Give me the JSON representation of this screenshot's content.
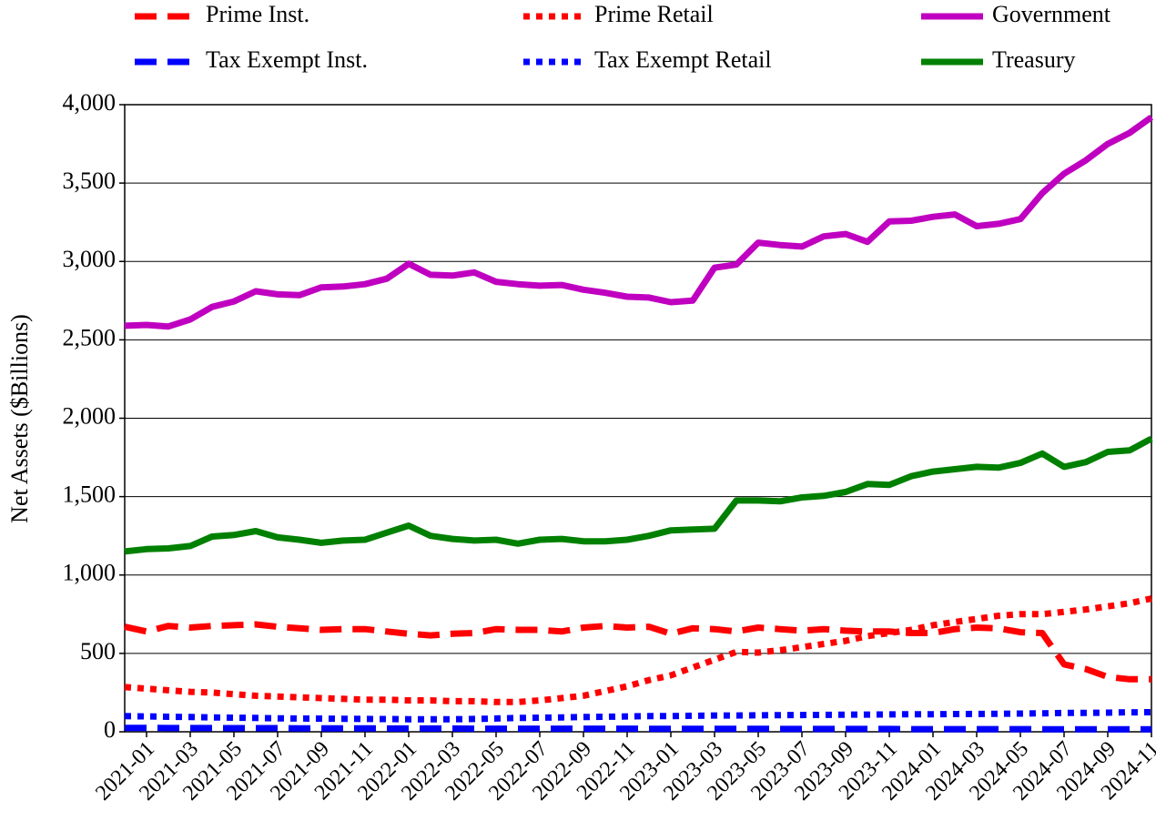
{
  "chart_data": {
    "type": "line",
    "y_label": "Net Assets ($Billions)",
    "categories": [
      null,
      "2021-01",
      null,
      "2021-03",
      null,
      "2021-05",
      null,
      "2021-07",
      null,
      "2021-09",
      null,
      "2021-11",
      null,
      "2022-01",
      null,
      "2022-03",
      null,
      "2022-05",
      null,
      "2022-07",
      null,
      "2022-09",
      null,
      "2022-11",
      null,
      "2023-01",
      null,
      "2023-03",
      null,
      "2023-05",
      null,
      "2023-07",
      null,
      "2023-09",
      null,
      "2023-11",
      null,
      "2024-01",
      null,
      "2024-03",
      null,
      "2024-05",
      null,
      "2024-07",
      null,
      "2024-09",
      null,
      "2024-11"
    ],
    "ylim": [
      0,
      4000
    ],
    "yticks": [
      0,
      500,
      {
        "value": 1000,
        "label": "1,000"
      },
      {
        "value": 1500,
        "label": "1,500"
      },
      {
        "value": 2000,
        "label": "2,000"
      },
      {
        "value": 2500,
        "label": "2,500"
      },
      {
        "value": 3000,
        "label": "3,000"
      },
      {
        "value": 3500,
        "label": "3,500"
      },
      {
        "value": 4000,
        "label": "4,000"
      }
    ],
    "grid": true,
    "legend": "top",
    "series": [
      {
        "name": "Prime Inst.",
        "color": "#ff0000",
        "linestyle": "dashed",
        "values": [
          670,
          640,
          675,
          665,
          675,
          680,
          685,
          670,
          660,
          650,
          655,
          655,
          640,
          625,
          615,
          625,
          630,
          655,
          650,
          650,
          640,
          665,
          675,
          665,
          670,
          625,
          660,
          655,
          640,
          665,
          655,
          645,
          655,
          645,
          640,
          640,
          630,
          630,
          655,
          665,
          660,
          635,
          630,
          430,
          400,
          350,
          335,
          335
        ]
      },
      {
        "name": "Prime Retail",
        "color": "#ff0000",
        "linestyle": "dotted",
        "values": [
          285,
          275,
          265,
          255,
          250,
          240,
          230,
          225,
          220,
          215,
          210,
          205,
          205,
          200,
          200,
          195,
          195,
          190,
          190,
          200,
          215,
          230,
          260,
          290,
          330,
          360,
          410,
          460,
          510,
          505,
          520,
          540,
          560,
          580,
          610,
          630,
          650,
          680,
          700,
          720,
          740,
          750,
          750,
          765,
          780,
          800,
          820,
          850
        ]
      },
      {
        "name": "Government",
        "color": "#c000c0",
        "linestyle": "solid",
        "values": [
          2590,
          2595,
          2585,
          2630,
          2710,
          2745,
          2810,
          2790,
          2785,
          2835,
          2840,
          2855,
          2890,
          2985,
          2915,
          2910,
          2930,
          2870,
          2855,
          2845,
          2850,
          2820,
          2800,
          2775,
          2770,
          2740,
          2750,
          2960,
          2980,
          3120,
          3105,
          3095,
          3160,
          3175,
          3125,
          3255,
          3260,
          3285,
          3300,
          3225,
          3240,
          3270,
          3435,
          3560,
          3645,
          3750,
          3820,
          3920
        ]
      },
      {
        "name": "Tax Exempt Inst.",
        "color": "#0000ff",
        "linestyle": "dashed",
        "values": [
          25,
          25,
          24,
          24,
          24,
          23,
          23,
          23,
          22,
          22,
          22,
          22,
          21,
          21,
          21,
          21,
          20,
          20,
          20,
          20,
          20,
          20,
          20,
          20,
          19,
          19,
          19,
          19,
          19,
          19,
          18,
          18,
          18,
          18,
          18,
          18,
          17,
          17,
          17,
          17,
          17,
          17,
          16,
          16,
          16,
          16,
          16,
          16
        ]
      },
      {
        "name": "Tax Exempt Retail",
        "color": "#0000ff",
        "linestyle": "dotted",
        "values": [
          100,
          98,
          96,
          94,
          92,
          90,
          88,
          86,
          85,
          84,
          83,
          82,
          81,
          80,
          80,
          80,
          82,
          85,
          88,
          90,
          92,
          94,
          96,
          98,
          100,
          100,
          102,
          104,
          104,
          105,
          106,
          107,
          108,
          109,
          110,
          111,
          112,
          112,
          113,
          114,
          115,
          116,
          118,
          120,
          121,
          122,
          124,
          125
        ]
      },
      {
        "name": "Treasury",
        "color": "#008000",
        "linestyle": "solid",
        "values": [
          1150,
          1165,
          1170,
          1185,
          1245,
          1255,
          1280,
          1240,
          1225,
          1205,
          1220,
          1225,
          1270,
          1315,
          1250,
          1230,
          1220,
          1225,
          1200,
          1225,
          1230,
          1215,
          1215,
          1225,
          1250,
          1285,
          1290,
          1295,
          1475,
          1475,
          1470,
          1495,
          1505,
          1530,
          1580,
          1575,
          1630,
          1660,
          1675,
          1690,
          1685,
          1715,
          1775,
          1690,
          1720,
          1785,
          1795,
          1870
        ]
      }
    ]
  }
}
